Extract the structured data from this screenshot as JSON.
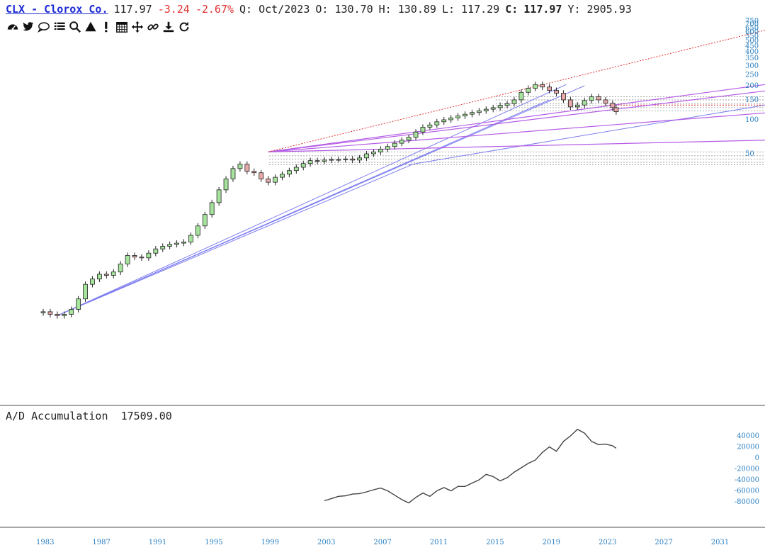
{
  "header": {
    "symbol_label": "CLX - Clorox Co.",
    "price": "117.97",
    "change": "-3.24",
    "change_pct": "-2.67%",
    "period": "Q: Oct/2023",
    "open": "O: 130.70",
    "high": "H: 130.89",
    "low": "L: 117.29",
    "close_label": "C:",
    "close_value": "117.97",
    "y_value": "Y: 2905.93"
  },
  "toolbar": {
    "icons": [
      "dashboard-icon",
      "twitter-icon",
      "comment-icon",
      "list-icon",
      "search-icon",
      "draw-triangle-icon",
      "alert-icon",
      "calendar-icon",
      "move-icon",
      "link-icon",
      "download-icon",
      "refresh-icon"
    ]
  },
  "colors": {
    "up_candle": "#a6e39c",
    "down_candle": "#e6a8a8",
    "trend_blue": "#7b7bf0",
    "trend_purple": "#b55ce6",
    "trend_red_dotted": "#e03131",
    "axis_text": "#2a7fc1",
    "ad_line": "#444444"
  },
  "chart_data": {
    "type": "candlestick",
    "title": "CLX - Clorox Co.",
    "scale": "log",
    "price_axis_ticks": [
      750,
      700,
      650,
      600,
      550,
      500,
      450,
      400,
      350,
      300,
      250,
      200,
      150,
      100,
      50
    ],
    "x_ticks": [
      "1983",
      "1987",
      "1991",
      "1995",
      "1999",
      "2003",
      "2007",
      "2011",
      "2015",
      "2019",
      "2023",
      "2027",
      "2031"
    ],
    "price_series": {
      "name": "CLX",
      "x": [
        1983.0,
        1983.5,
        1984.0,
        1984.5,
        1985.0,
        1985.5,
        1986.0,
        1986.5,
        1987.0,
        1987.5,
        1988.0,
        1988.5,
        1989.0,
        1989.5,
        1990.0,
        1990.5,
        1991.0,
        1991.5,
        1992.0,
        1992.5,
        1993.0,
        1993.5,
        1994.0,
        1994.5,
        1995.0,
        1995.5,
        1996.0,
        1996.5,
        1997.0,
        1997.5,
        1998.0,
        1998.5,
        1999.0,
        1999.5,
        2000.0,
        2000.5,
        2001.0,
        2001.5,
        2002.0,
        2002.5,
        2003.0,
        2003.5,
        2004.0,
        2004.5,
        2005.0,
        2005.5,
        2006.0,
        2006.5,
        2007.0,
        2007.5,
        2008.0,
        2008.5,
        2009.0,
        2009.5,
        2010.0,
        2010.5,
        2011.0,
        2011.5,
        2012.0,
        2012.5,
        2013.0,
        2013.5,
        2014.0,
        2014.5,
        2015.0,
        2015.5,
        2016.0,
        2016.5,
        2017.0,
        2017.5,
        2018.0,
        2018.5,
        2019.0,
        2019.5,
        2020.0,
        2020.5,
        2021.0,
        2021.5,
        2022.0,
        2022.5,
        2023.0,
        2023.5,
        2023.75
      ],
      "close": [
        2.0,
        1.9,
        1.85,
        1.9,
        2.1,
        2.6,
        3.5,
        3.9,
        4.3,
        4.2,
        4.5,
        5.3,
        6.3,
        6.1,
        6.0,
        6.6,
        7.2,
        7.6,
        7.9,
        8.1,
        8.3,
        9.5,
        11.5,
        14.5,
        18.5,
        24.0,
        30.0,
        37.0,
        40.5,
        35.0,
        34.0,
        30.0,
        28.0,
        31.0,
        33.0,
        35.5,
        38.0,
        41.0,
        43.5,
        43.0,
        44.0,
        44.5,
        44.5,
        45.0,
        44.0,
        46.0,
        50.0,
        52.0,
        55.0,
        58.0,
        62.0,
        66.0,
        70.0,
        78.0,
        86.0,
        90.0,
        96.0,
        100.0,
        104.0,
        108.0,
        112.0,
        116.0,
        120.0,
        124.0,
        128.0,
        134.0,
        139.0,
        150.0,
        175.0,
        190.0,
        205.0,
        195.0,
        182.0,
        172.0,
        150.0,
        130.0,
        135.0,
        148.0,
        160.0,
        150.0,
        140.0,
        128.0,
        117.97
      ]
    },
    "horizontal_levels": [
      160,
      150,
      140,
      135,
      128,
      120,
      52,
      48,
      45,
      42,
      40
    ],
    "indicator": {
      "name": "A/D Accumulation",
      "value_label": "17509.00",
      "y_ticks": [
        40000,
        20000,
        0,
        -20000,
        -40000,
        -60000,
        -80000
      ],
      "x": [
        2003.0,
        2003.5,
        2004.0,
        2004.5,
        2005.0,
        2005.5,
        2006.0,
        2006.5,
        2007.0,
        2007.5,
        2008.0,
        2008.5,
        2009.0,
        2009.5,
        2010.0,
        2010.5,
        2011.0,
        2011.5,
        2012.0,
        2012.5,
        2013.0,
        2013.5,
        2014.0,
        2014.5,
        2015.0,
        2015.5,
        2016.0,
        2016.5,
        2017.0,
        2017.5,
        2018.0,
        2018.5,
        2019.0,
        2019.5,
        2020.0,
        2020.5,
        2021.0,
        2021.5,
        2022.0,
        2022.5,
        2023.0,
        2023.5,
        2023.75
      ],
      "values": [
        -78000,
        -74000,
        -70000,
        -69000,
        -66000,
        -65000,
        -62000,
        -58000,
        -55000,
        -60000,
        -68000,
        -76000,
        -82000,
        -72000,
        -64000,
        -70000,
        -60000,
        -54000,
        -60000,
        -52000,
        -52000,
        -46000,
        -40000,
        -30000,
        -34000,
        -42000,
        -36000,
        -26000,
        -18000,
        -10000,
        -4000,
        10000,
        20000,
        12000,
        30000,
        40000,
        52000,
        45000,
        30000,
        24000,
        25000,
        22000,
        17509
      ]
    }
  }
}
